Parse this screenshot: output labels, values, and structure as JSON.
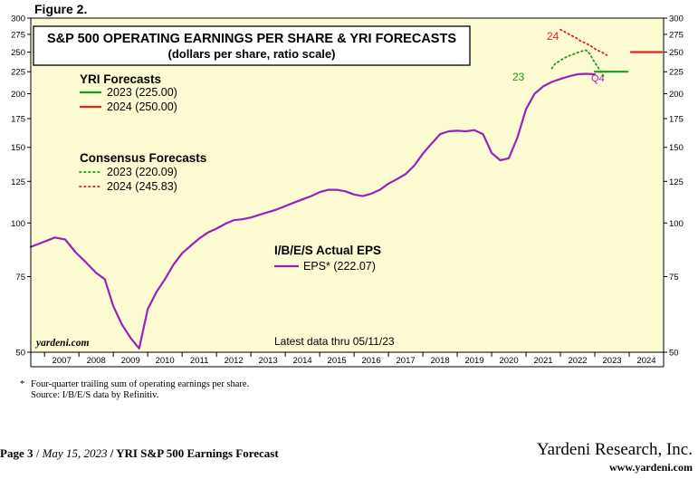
{
  "figure_label": "Figure 2.",
  "footnote_marker": "*",
  "footnote_line1": "Four-quarter trailing sum of operating earnings per share.",
  "footnote_line2": "Source: I/B/E/S data by Refinitiv.",
  "footer": {
    "page": "Page 3",
    "date": "May 15, 2023",
    "report": "YRI S&P 500 Earnings Forecast",
    "org": "Yardeni Research, Inc.",
    "url": "www.yardeni.com"
  },
  "colors": {
    "plot_bg": "#fdfbd2",
    "eps_line": "#9a22b8",
    "yri_2023": "#1f9a1f",
    "yri_2024": "#e8201c",
    "consensus_2023": "#1f9a1f",
    "consensus_2024": "#e8201c"
  },
  "chart_data": {
    "type": "line",
    "title": "S&P 500 OPERATING EARNINGS PER SHARE & YRI FORECASTS",
    "subtitle": "(dollars per share, ratio scale)",
    "yscale": "log",
    "ylim": [
      50,
      300
    ],
    "xlim": [
      2006.6,
      2025.0
    ],
    "yticks": [
      50,
      75,
      100,
      125,
      150,
      175,
      200,
      225,
      250,
      275,
      300
    ],
    "ytick_labels": [
      "50",
      "75",
      "100",
      "125",
      "150",
      "175",
      "200",
      "225",
      "250",
      "275",
      "300"
    ],
    "xtick_labels": [
      "2007",
      "2008",
      "2009",
      "2010",
      "2011",
      "2012",
      "2013",
      "2014",
      "2015",
      "2016",
      "2017",
      "2018",
      "2019",
      "2020",
      "2021",
      "2022",
      "2023",
      "2024"
    ],
    "watermark": "yardeni.com",
    "latest_note": "Latest data thru 05/11/23",
    "legend": {
      "yri_heading": "YRI Forecasts",
      "yri_2023": "2023 (225.00)",
      "yri_2024": "2024 (250.00)",
      "consensus_heading": "Consensus Forecasts",
      "consensus_2023": "2023 (220.09)",
      "consensus_2024": "2024 (245.83)",
      "actual_heading": "I/B/E/S Actual EPS",
      "actual_eps": "EPS* (222.07)"
    },
    "annotations": {
      "c2023": "23",
      "c2024": "24",
      "q4": "Q4"
    },
    "series": [
      {
        "name": "EPS* (actual, 4Q trailing)",
        "style": "solid",
        "x": [
          2006.6,
          2007.0,
          2007.3,
          2007.6,
          2007.9,
          2008.2,
          2008.5,
          2008.75,
          2009.0,
          2009.25,
          2009.5,
          2009.75,
          2010.0,
          2010.25,
          2010.5,
          2010.75,
          2011.0,
          2011.25,
          2011.5,
          2011.75,
          2012.0,
          2012.25,
          2012.5,
          2012.75,
          2013.0,
          2013.25,
          2013.5,
          2013.75,
          2014.0,
          2014.25,
          2014.5,
          2014.75,
          2015.0,
          2015.25,
          2015.5,
          2015.75,
          2016.0,
          2016.25,
          2016.5,
          2016.75,
          2017.0,
          2017.25,
          2017.5,
          2017.75,
          2018.0,
          2018.25,
          2018.5,
          2018.75,
          2019.0,
          2019.25,
          2019.5,
          2019.75,
          2020.0,
          2020.25,
          2020.5,
          2020.75,
          2021.0,
          2021.25,
          2021.5,
          2021.75,
          2022.0,
          2022.25,
          2022.5,
          2022.75,
          2023.0
        ],
        "values": [
          88,
          90.5,
          92.5,
          91.5,
          85.5,
          81,
          76.5,
          74,
          64,
          58,
          54,
          51,
          63,
          69,
          74,
          80,
          85,
          88.5,
          92,
          95,
          97,
          99.5,
          101.5,
          102,
          103,
          104.5,
          106,
          107.5,
          109.5,
          111.5,
          113.5,
          115.5,
          118,
          119.5,
          119.5,
          118.5,
          116.5,
          115.5,
          117,
          119.5,
          123.5,
          126.5,
          130,
          136,
          145,
          153,
          161,
          163.5,
          164,
          163.5,
          164.5,
          161,
          145.5,
          140,
          141.5,
          158,
          184,
          200,
          208,
          213,
          216.5,
          219.5,
          222,
          222.5,
          222
        ]
      },
      {
        "name": "Consensus 2023",
        "style": "dotted",
        "x": [
          2021.75,
          2021.85,
          2022.0,
          2022.15,
          2022.3,
          2022.45,
          2022.6,
          2022.75,
          2022.85,
          2022.95,
          2023.1,
          2023.25
        ],
        "values": [
          229,
          235,
          239,
          243,
          246,
          248.5,
          251,
          252.5,
          248,
          240,
          230,
          220.09
        ]
      },
      {
        "name": "Consensus 2024",
        "style": "dotted",
        "x": [
          2022.0,
          2022.15,
          2022.3,
          2022.45,
          2022.6,
          2022.75,
          2022.9,
          2023.05,
          2023.2,
          2023.35
        ],
        "values": [
          282,
          278,
          274,
          270,
          265,
          262,
          258,
          253,
          250,
          245.83
        ]
      },
      {
        "name": "YRI 2023",
        "style": "solid",
        "x": [
          2023.0,
          2023.95
        ],
        "values": [
          225.0,
          225.0
        ]
      },
      {
        "name": "YRI 2024",
        "style": "solid",
        "x": [
          2024.05,
          2024.95
        ],
        "values": [
          250.0,
          250.0
        ]
      }
    ]
  }
}
